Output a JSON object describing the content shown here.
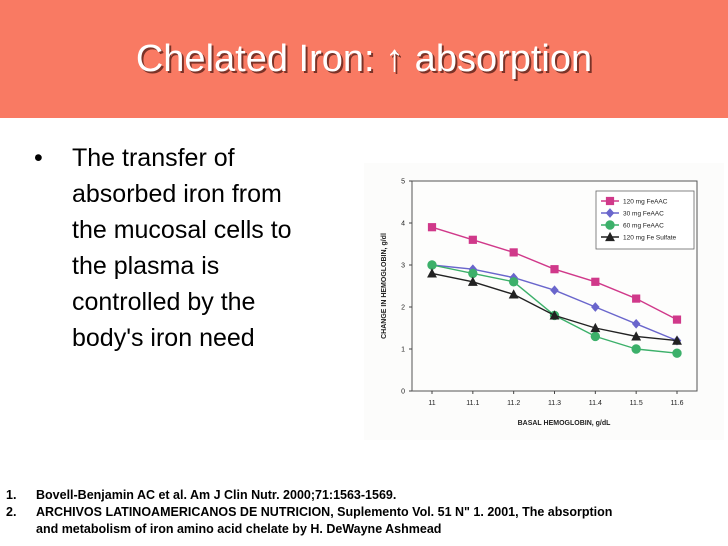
{
  "slide": {
    "title": "Chelated Iron: ↑ absorption",
    "title_color": "#ffffff",
    "bar_color": "#f97a63",
    "bullet_symbol": "•",
    "bullet_lines": [
      "The transfer of",
      "absorbed iron from",
      "the mucosal cells to",
      "the plasma is",
      "controlled by the",
      "body's iron need"
    ],
    "references": [
      {
        "num": "1.",
        "lines": [
          "Bovell-Benjamin AC et al. Am J Clin Nutr. 2000;71:1563-1569."
        ]
      },
      {
        "num": "2.",
        "lines": [
          "ARCHIVOS LATINOAMERICANOS DE NUTRICION, Suplemento Vol. 51 N\" 1. 2001, The absorption",
          "and metabolism of iron amino acid chelate by H. DeWayne Ashmead"
        ]
      }
    ]
  },
  "chart_data": {
    "type": "line",
    "xlabel": "BASAL HEMOGLOBIN, g/dL",
    "ylabel": "CHANGE IN HEMOGLOBIN, g/dl",
    "x": [
      11,
      11.1,
      11.2,
      11.3,
      11.4,
      11.5,
      11.6
    ],
    "x_tick_labels": [
      "11",
      "11.1",
      "11.2",
      "11.3",
      "11.4",
      "11.5",
      "11.6"
    ],
    "y_ticks": [
      0,
      1,
      2,
      3,
      4,
      5
    ],
    "ylim": [
      0,
      5
    ],
    "legend_position": "top-right",
    "series": [
      {
        "name": "120 mg FeAAC",
        "color": "#d0398a",
        "marker": "square",
        "values": [
          3.9,
          3.6,
          3.3,
          2.9,
          2.6,
          2.2,
          1.7
        ]
      },
      {
        "name": "30 mg FeAAC",
        "color": "#6a66cc",
        "marker": "diamond",
        "values": [
          3.0,
          2.9,
          2.7,
          2.4,
          2.0,
          1.6,
          1.2
        ]
      },
      {
        "name": "60 mg FeAAC",
        "color": "#3cb06a",
        "marker": "circle",
        "values": [
          3.0,
          2.8,
          2.6,
          1.8,
          1.3,
          1.0,
          0.9
        ]
      },
      {
        "name": "120 mg Fe Sulfate",
        "color": "#222222",
        "marker": "triangle",
        "values": [
          2.8,
          2.6,
          2.3,
          1.8,
          1.5,
          1.3,
          1.2
        ]
      }
    ]
  }
}
